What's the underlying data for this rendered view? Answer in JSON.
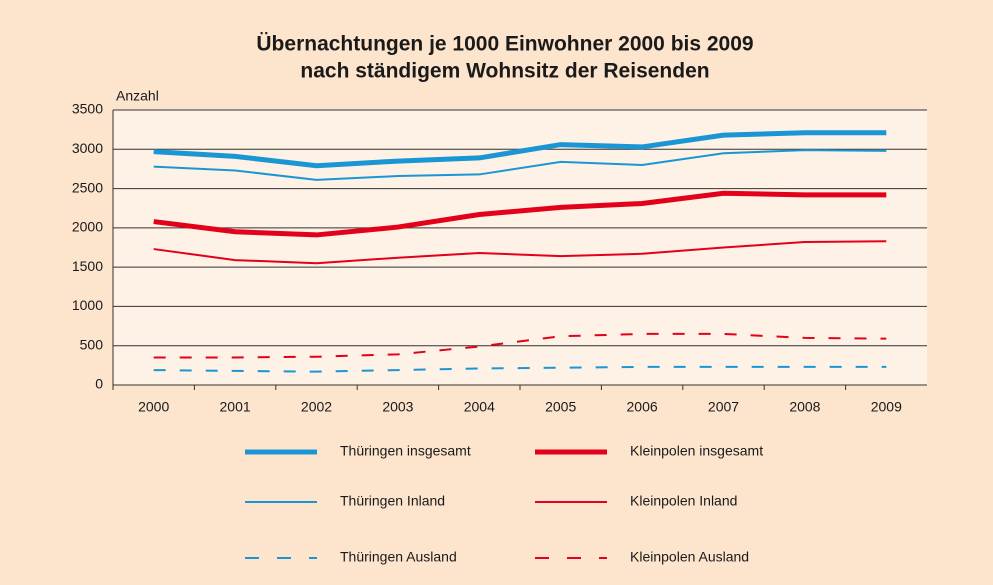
{
  "chart_data": {
    "type": "line",
    "title": [
      "Übernachtungen je 1000 Einwohner 2000 bis 2009",
      "nach ständigem Wohnsitz der Reisenden"
    ],
    "y_label": "Anzahl",
    "categories": [
      "2000",
      "2001",
      "2002",
      "2003",
      "2004",
      "2005",
      "2006",
      "2007",
      "2008",
      "2009"
    ],
    "ylim": [
      0,
      3500
    ],
    "yticks": [
      0,
      500,
      1000,
      1500,
      2000,
      2500,
      3000,
      3500
    ],
    "grid": true,
    "series": [
      {
        "name": "Thüringen insgesamt",
        "color": "#1a96d4",
        "line_width": 5,
        "style": "solid",
        "values": [
          2970,
          2910,
          2790,
          2850,
          2890,
          3060,
          3030,
          3180,
          3210,
          3210
        ]
      },
      {
        "name": "Kleinpolen insgesamt",
        "color": "#e2001a",
        "line_width": 5,
        "style": "solid",
        "values": [
          2080,
          1950,
          1910,
          2010,
          2170,
          2260,
          2310,
          2440,
          2420,
          2420
        ]
      },
      {
        "name": "Thüringen Inland",
        "color": "#1a96d4",
        "line_width": 2,
        "style": "solid",
        "values": [
          2780,
          2730,
          2610,
          2660,
          2680,
          2840,
          2800,
          2950,
          2990,
          2980
        ]
      },
      {
        "name": "Kleinpolen Inland",
        "color": "#e2001a",
        "line_width": 2,
        "style": "solid",
        "values": [
          1730,
          1590,
          1550,
          1620,
          1680,
          1640,
          1670,
          1750,
          1820,
          1830
        ]
      },
      {
        "name": "Thüringen Ausland",
        "color": "#1a96d4",
        "line_width": 2,
        "style": "dashed",
        "values": [
          190,
          180,
          170,
          190,
          210,
          220,
          230,
          230,
          230,
          230
        ]
      },
      {
        "name": "Kleinpolen Ausland",
        "color": "#e2001a",
        "line_width": 2,
        "style": "dashed",
        "values": [
          350,
          350,
          360,
          390,
          490,
          620,
          650,
          650,
          600,
          590
        ]
      }
    ]
  }
}
